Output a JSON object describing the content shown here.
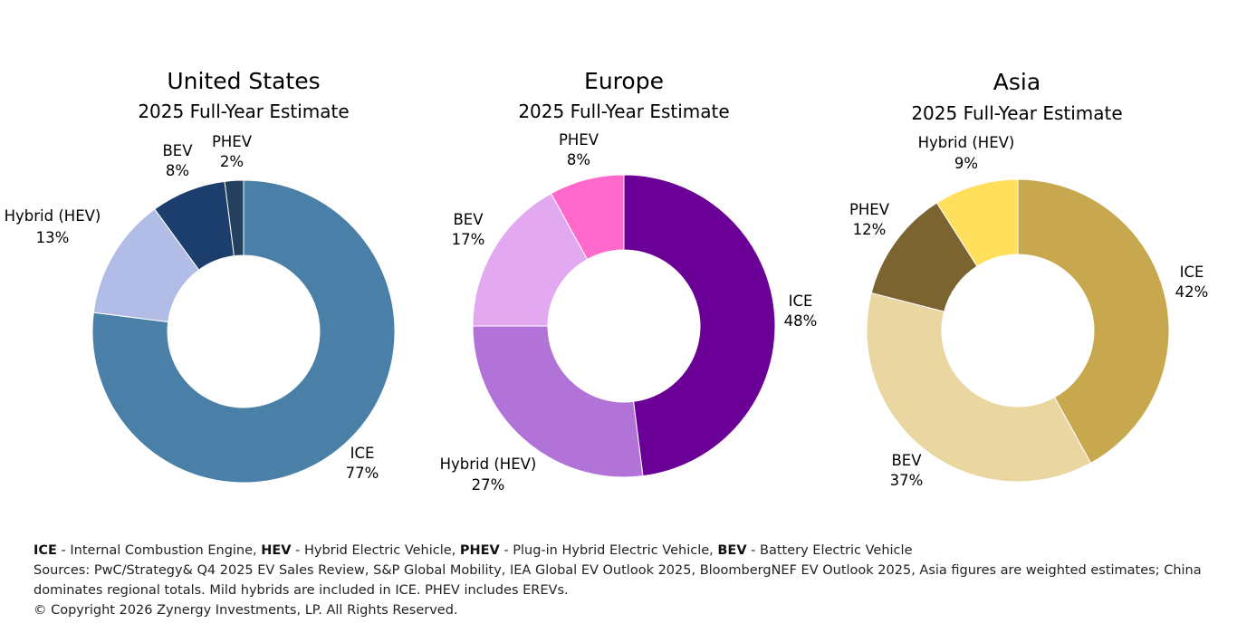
{
  "chart_data": [
    {
      "type": "pie",
      "title": "United States",
      "subtitle": "2025 Full-Year Estimate",
      "slices": [
        {
          "name": "ICE",
          "value": 77,
          "label": "77%",
          "color": "#4A80A7"
        },
        {
          "name": "Hybrid (HEV)",
          "value": 13,
          "label": "13%",
          "color": "#B1BDE6"
        },
        {
          "name": "BEV",
          "value": 8,
          "label": "8%",
          "color": "#1B3E6C"
        },
        {
          "name": "PHEV",
          "value": 2,
          "label": "2%",
          "color": "#23405F"
        }
      ]
    },
    {
      "type": "pie",
      "title": "Europe",
      "subtitle": "2025 Full-Year Estimate",
      "slices": [
        {
          "name": "ICE",
          "value": 48,
          "label": "48%",
          "color": "#6B0097"
        },
        {
          "name": "Hybrid (HEV)",
          "value": 27,
          "label": "27%",
          "color": "#B273D8"
        },
        {
          "name": "BEV",
          "value": 17,
          "label": "17%",
          "color": "#E2A8F0"
        },
        {
          "name": "PHEV",
          "value": 8,
          "label": "8%",
          "color": "#FF69CB"
        }
      ]
    },
    {
      "type": "pie",
      "title": "Asia",
      "subtitle": "2025 Full-Year Estimate",
      "slices": [
        {
          "name": "ICE",
          "value": 42,
          "label": "42%",
          "color": "#C8A84F"
        },
        {
          "name": "BEV",
          "value": 37,
          "label": "37%",
          "color": "#E9D6A1"
        },
        {
          "name": "PHEV",
          "value": 12,
          "label": "12%",
          "color": "#7B6430"
        },
        {
          "name": "Hybrid (HEV)",
          "value": 9,
          "label": "9%",
          "color": "#FFDF5C"
        }
      ]
    }
  ],
  "footer": {
    "legend": [
      {
        "abbr": "ICE",
        "text": " - Internal Combustion Engine, "
      },
      {
        "abbr": "HEV",
        "text": " - Hybrid Electric Vehicle, "
      },
      {
        "abbr": "PHEV",
        "text": " - Plug-in Hybrid Electric Vehicle, "
      },
      {
        "abbr": "BEV",
        "text": " - Battery Electric Vehicle"
      }
    ],
    "sources": "Sources: PwC/Strategy& Q4 2025 EV Sales Review, S&P Global Mobility, IEA Global EV Outlook 2025, BloombergNEF EV Outlook 2025, Asia figures are weighted estimates; China dominates regional totals. Mild hybrids are included in ICE. PHEV includes EREVs.",
    "copyright": "© Copyright 2026 Zynergy Investments, LP. All Rights Reserved."
  }
}
